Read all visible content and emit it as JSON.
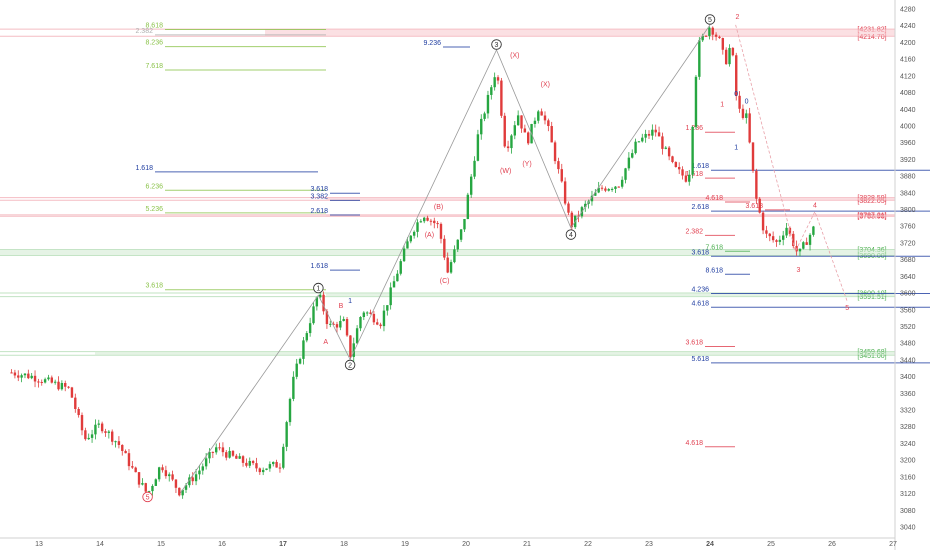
{
  "chart_data": {
    "type": "candlestick",
    "x_ticks": [
      "13",
      "14",
      "15",
      "16",
      "17",
      "18",
      "19",
      "20",
      "21",
      "22",
      "23",
      "24",
      "25",
      "26",
      "27"
    ],
    "y_ticks": [
      4280,
      4240,
      4200,
      4160,
      4120,
      4080,
      4040,
      4000,
      3960,
      3920,
      3880,
      3840,
      3800,
      3760,
      3720,
      3680,
      3640,
      3600,
      3560,
      3520,
      3480,
      3440,
      3400,
      3360,
      3320,
      3280,
      3240,
      3200,
      3160,
      3120,
      3080,
      3040
    ],
    "y_range": [
      3030,
      4290
    ],
    "grid": false,
    "price_boxes": [
      {
        "label": "[4231.82]",
        "price": 4231.82,
        "color": "#e04050"
      },
      {
        "label": "[4214.70]",
        "price": 4214.7,
        "color": "#e04050"
      },
      {
        "label": "[3828.59]",
        "price": 3828.59,
        "color": "#e04050"
      },
      {
        "label": "[3822.05]",
        "price": 3822.05,
        "color": "#e04050"
      },
      {
        "label": "[3787.21]",
        "price": 3787.21,
        "color": "#e04050"
      },
      {
        "label": "[3783.98]",
        "price": 3783.98,
        "color": "#e04050"
      },
      {
        "label": "[3704.36]",
        "price": 3704.36,
        "color": "#4caf50"
      },
      {
        "label": "[3690.00]",
        "price": 3690.0,
        "color": "#4caf50"
      },
      {
        "label": "[3600.10]",
        "price": 3600.1,
        "color": "#4caf50"
      },
      {
        "label": "[3591.51]",
        "price": 3591.51,
        "color": "#4caf50"
      },
      {
        "label": "[3459.68]",
        "price": 3459.68,
        "color": "#4caf50"
      },
      {
        "label": "[3451.00]",
        "price": 3451.0,
        "color": "#4caf50"
      }
    ],
    "fib_levels": [
      {
        "label": "8.618",
        "price": 4231,
        "color": "#8bc34a",
        "x1": 165,
        "x2": 326
      },
      {
        "label": "2.382",
        "price": 4218,
        "color": "#b0b0b0",
        "x1": 155,
        "x2": 326
      },
      {
        "label": "8.236",
        "price": 4190,
        "color": "#8bc34a",
        "x1": 165,
        "x2": 326
      },
      {
        "label": "7.618",
        "price": 4134,
        "color": "#8bc34a",
        "x1": 165,
        "x2": 326
      },
      {
        "label": "6.236",
        "price": 3846,
        "color": "#8bc34a",
        "x1": 165,
        "x2": 326
      },
      {
        "label": "5.236",
        "price": 3792,
        "color": "#8bc34a",
        "x1": 165,
        "x2": 326
      },
      {
        "label": "3.618",
        "price": 3608,
        "color": "#8bc34a",
        "x1": 165,
        "x2": 326
      },
      {
        "label": "9.236",
        "price": 4189,
        "color": "#1e3ca0",
        "x1": 443,
        "x2": 470
      },
      {
        "label": "3.618",
        "price": 3839,
        "color": "#1e3ca0",
        "x1": 330,
        "x2": 360
      },
      {
        "label": "3.382",
        "price": 3822,
        "color": "#1e3ca0",
        "x1": 330,
        "x2": 360
      },
      {
        "label": "2.618",
        "price": 3787,
        "color": "#1e3ca0",
        "x1": 330,
        "x2": 360
      },
      {
        "label": "1.618",
        "price": 3655,
        "color": "#1e3ca0",
        "x1": 330,
        "x2": 360
      },
      {
        "label": "1.618",
        "price": 3890,
        "color": "#1e3ca0",
        "x1": 155,
        "x2": 318
      },
      {
        "label": "1.618",
        "price": 3894,
        "color": "#1e3ca0",
        "x1": 711,
        "x2": 930
      },
      {
        "label": "2.618",
        "price": 3796,
        "color": "#1e3ca0",
        "x1": 711,
        "x2": 930
      },
      {
        "label": "3.618",
        "price": 3688,
        "color": "#1e3ca0",
        "x1": 711,
        "x2": 930
      },
      {
        "label": "4.236",
        "price": 3599,
        "color": "#1e3ca0",
        "x1": 711,
        "x2": 930
      },
      {
        "label": "4.618",
        "price": 3566,
        "color": "#1e3ca0",
        "x1": 711,
        "x2": 930
      },
      {
        "label": "5.618",
        "price": 3433,
        "color": "#1e3ca0",
        "x1": 711,
        "x2": 930
      },
      {
        "label": "1.236",
        "price": 3985,
        "color": "#e04050",
        "x1": 705,
        "x2": 735
      },
      {
        "label": "1.618",
        "price": 3875,
        "color": "#e04050",
        "x1": 705,
        "x2": 735
      },
      {
        "label": "4.618",
        "price": 3818,
        "color": "#e04050",
        "x1": 725,
        "x2": 750
      },
      {
        "label": "2.382",
        "price": 3738,
        "color": "#e04050",
        "x1": 705,
        "x2": 735
      },
      {
        "label": "7.618",
        "price": 3700,
        "color": "#4caf50",
        "x1": 725,
        "x2": 750
      },
      {
        "label": "8.618",
        "price": 3645,
        "color": "#1e3ca0",
        "x1": 725,
        "x2": 750
      },
      {
        "label": "3.618",
        "price": 3472,
        "color": "#e04050",
        "x1": 705,
        "x2": 735
      },
      {
        "label": "4.618",
        "price": 3232,
        "color": "#e04050",
        "x1": 705,
        "x2": 735
      },
      {
        "label": "3.618",
        "price": 3799,
        "color": "#e04050",
        "x1": 765,
        "x2": 790
      }
    ],
    "wave_labels": [
      {
        "text": "1",
        "kind": "circle",
        "day": 17.58,
        "price": 3612,
        "color": "#333333"
      },
      {
        "text": "2",
        "kind": "circle",
        "day": 18.1,
        "price": 3428,
        "color": "#333333"
      },
      {
        "text": "3",
        "kind": "circle",
        "day": 20.5,
        "price": 4195,
        "color": "#333333"
      },
      {
        "text": "4",
        "kind": "circle",
        "day": 21.72,
        "price": 3740,
        "color": "#333333"
      },
      {
        "text": "5",
        "kind": "circle",
        "day": 24.0,
        "price": 4255,
        "color": "#333333"
      },
      {
        "text": "5",
        "kind": "circle",
        "day": 14.78,
        "price": 3112,
        "color": "#e04050"
      },
      {
        "text": "A",
        "kind": "plain",
        "day": 17.7,
        "price": 3484,
        "color": "#e04050"
      },
      {
        "text": "B",
        "kind": "plain",
        "day": 17.95,
        "price": 3570,
        "color": "#e04050"
      },
      {
        "text": "(A)",
        "kind": "plain",
        "day": 19.4,
        "price": 3740,
        "color": "#e04050"
      },
      {
        "text": "(B)",
        "kind": "plain",
        "day": 19.55,
        "price": 3807,
        "color": "#e04050"
      },
      {
        "text": "(C)",
        "kind": "plain",
        "day": 19.65,
        "price": 3630,
        "color": "#e04050"
      },
      {
        "text": "(X)",
        "kind": "plain",
        "day": 20.8,
        "price": 4170,
        "color": "#e04050"
      },
      {
        "text": "(W)",
        "kind": "plain",
        "day": 20.65,
        "price": 3893,
        "color": "#e04050"
      },
      {
        "text": "(Y)",
        "kind": "plain",
        "day": 21.0,
        "price": 3910,
        "color": "#e04050"
      },
      {
        "text": "(X)",
        "kind": "plain",
        "day": 21.3,
        "price": 4101,
        "color": "#e04050"
      },
      {
        "text": "2",
        "kind": "plain",
        "day": 24.45,
        "price": 4262,
        "color": "#e04050"
      },
      {
        "text": "1",
        "kind": "plain",
        "day": 24.2,
        "price": 4053,
        "color": "#e04050"
      },
      {
        "text": "4",
        "kind": "plain",
        "day": 25.72,
        "price": 3811,
        "color": "#e04050"
      },
      {
        "text": "3",
        "kind": "plain",
        "day": 25.45,
        "price": 3657,
        "color": "#e04050"
      },
      {
        "text": "5",
        "kind": "plain",
        "day": 26.25,
        "price": 3565,
        "color": "#e04050"
      },
      {
        "text": "1",
        "kind": "plain",
        "day": 24.43,
        "price": 3950,
        "color": "#1e3ca0"
      },
      {
        "text": "0",
        "kind": "plain",
        "day": 24.6,
        "price": 4060,
        "color": "#1e3ca0"
      },
      {
        "text": "0",
        "kind": "plain",
        "day": 24.43,
        "price": 4078,
        "color": "#1e3ca0"
      },
      {
        "text": "1",
        "kind": "plain",
        "day": 18.1,
        "price": 3582,
        "color": "#1e3ca0"
      }
    ],
    "wave_path_main": [
      [
        15.32,
        3122
      ],
      [
        17.58,
        3595
      ],
      [
        18.1,
        3441
      ],
      [
        20.5,
        4182
      ],
      [
        21.72,
        3756
      ],
      [
        24.0,
        4242
      ]
    ],
    "wave_path_down": [
      [
        24.42,
        4242
      ],
      [
        25.4,
        3700
      ],
      [
        25.72,
        3795
      ],
      [
        26.25,
        3580
      ]
    ]
  }
}
